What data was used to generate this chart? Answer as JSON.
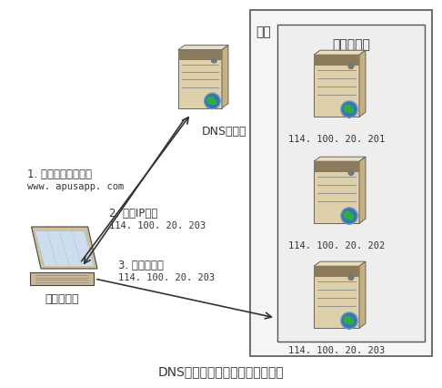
{
  "title": "DNS域名解析负载均衡工作原理图",
  "bg_color": "#ffffff",
  "title_fontsize": 10,
  "machine_room_label": "机房",
  "server_cluster_label": "服务器集群",
  "dns_server_label": "DNS服务器",
  "browser_label": "用户浏览器",
  "server_ips": [
    "114. 100. 20. 201",
    "114. 100. 20. 202",
    "114. 100. 20. 203"
  ],
  "arrow1_label1": "1. 用户请求域名解析",
  "arrow1_label2": "www. apusapp. com",
  "arrow2_label1": "2. 返回IP地址",
  "arrow2_label2": "114. 100. 20. 203",
  "arrow3_label1": "3. 浏览器请求",
  "arrow3_label2": "114. 100. 20. 203",
  "text_color": "#333333",
  "box_edge_color": "#555555",
  "server_body_color": "#ddd0aa",
  "server_dark_color": "#8c7b5a",
  "server_side_color": "#c4b080",
  "globe_blue": "#3377bb",
  "globe_green": "#33aa44"
}
